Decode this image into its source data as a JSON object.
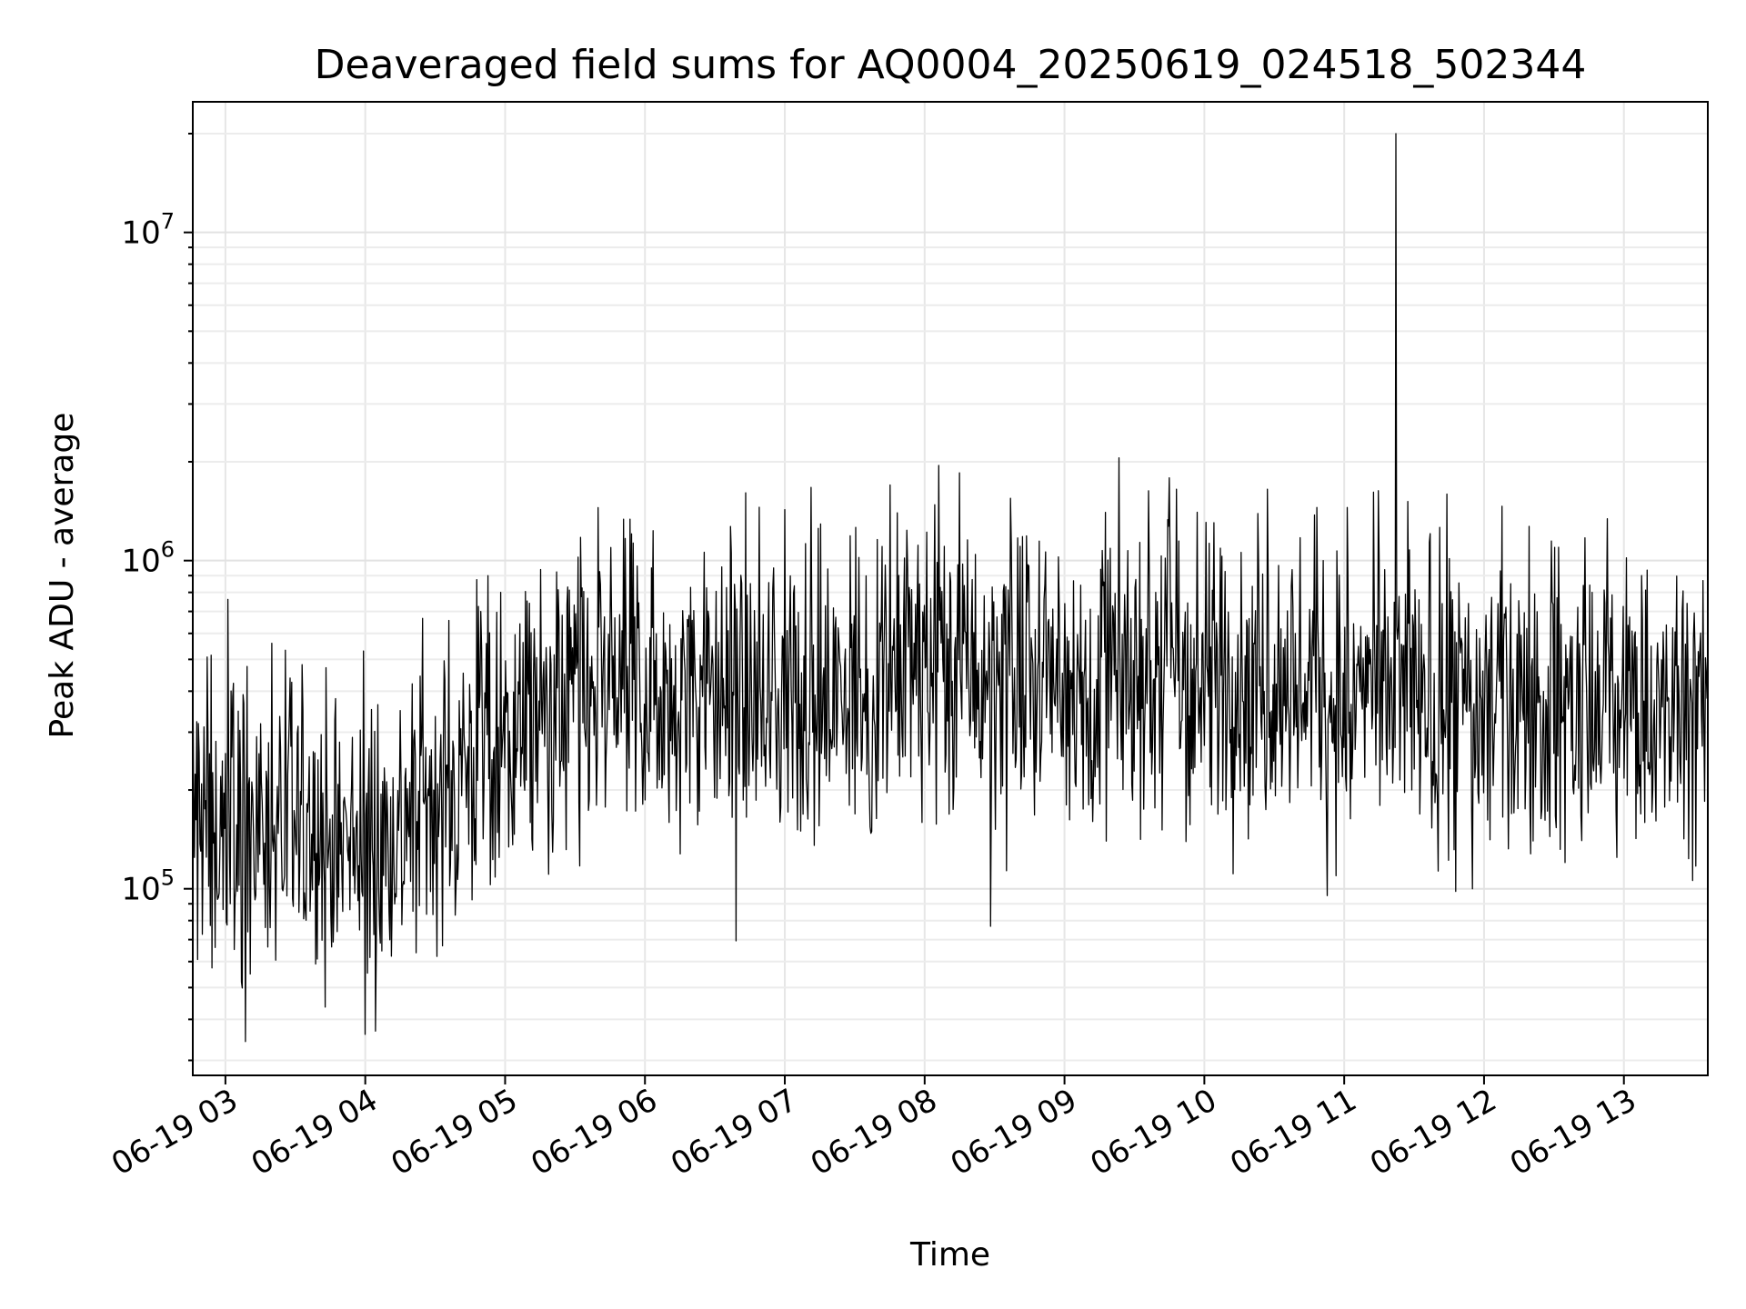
{
  "chart_data": {
    "type": "line",
    "title": "Deaveraged field sums for AQ0004_20250619_024518_502344",
    "xlabel": "Time",
    "ylabel": "Peak ADU - average",
    "x_range": [
      "06-19 02:46",
      "06-19 13:36"
    ],
    "y_scale": "log",
    "ylim": [
      27000,
      25000000
    ],
    "grid": true,
    "line_color": "#000000",
    "x_ticks": [
      {
        "label": "06-19 03",
        "time": "06-19 03:00"
      },
      {
        "label": "06-19 04",
        "time": "06-19 04:00"
      },
      {
        "label": "06-19 05",
        "time": "06-19 05:00"
      },
      {
        "label": "06-19 06",
        "time": "06-19 06:00"
      },
      {
        "label": "06-19 07",
        "time": "06-19 07:00"
      },
      {
        "label": "06-19 08",
        "time": "06-19 08:00"
      },
      {
        "label": "06-19 09",
        "time": "06-19 09:00"
      },
      {
        "label": "06-19 10",
        "time": "06-19 10:00"
      },
      {
        "label": "06-19 11",
        "time": "06-19 11:00"
      },
      {
        "label": "06-19 12",
        "time": "06-19 12:00"
      },
      {
        "label": "06-19 13",
        "time": "06-19 13:00"
      }
    ],
    "y_ticks": [
      {
        "base": "10",
        "exp": "5",
        "value": 100000
      },
      {
        "base": "10",
        "exp": "6",
        "value": 1000000
      },
      {
        "base": "10",
        "exp": "7",
        "value": 10000000
      }
    ],
    "series": [
      {
        "x": [
          "06-19 02:46",
          "06-19 03:00",
          "06-19 03:20",
          "06-19 03:40",
          "06-19 04:00",
          "06-19 04:20",
          "06-19 04:40",
          "06-19 05:00",
          "06-19 05:20",
          "06-19 05:40",
          "06-19 06:00",
          "06-19 06:20",
          "06-19 06:40",
          "06-19 07:00",
          "06-19 07:20",
          "06-19 07:40",
          "06-19 08:00",
          "06-19 08:20",
          "06-19 08:40",
          "06-19 09:00",
          "06-19 09:20",
          "06-19 09:40",
          "06-19 10:00",
          "06-19 10:20",
          "06-19 10:40",
          "06-19 11:00",
          "06-19 11:20",
          "06-19 11:40",
          "06-19 12:00",
          "06-19 12:20",
          "06-19 12:40",
          "06-19 13:00",
          "06-19 13:20",
          "06-19 13:36"
        ],
        "values": [
          150000,
          160000,
          150000,
          140000,
          130000,
          170000,
          230000,
          300000,
          340000,
          390000,
          420000,
          410000,
          400000,
          390000,
          380000,
          410000,
          500000,
          460000,
          430000,
          450000,
          470000,
          460000,
          430000,
          440000,
          440000,
          400000,
          380000,
          370000,
          370000,
          360000,
          350000,
          340000,
          340000,
          350000
        ]
      }
    ],
    "peaks": [
      {
        "x": "06-19 03:20",
        "y": 560000
      },
      {
        "x": "06-19 04:00",
        "y": 36000
      },
      {
        "x": "06-19 05:40",
        "y": 1450000
      },
      {
        "x": "06-19 07:45",
        "y": 1700000
      },
      {
        "x": "06-19 08:06",
        "y": 1950000
      },
      {
        "x": "06-19 08:15",
        "y": 1850000
      },
      {
        "x": "06-19 09:48",
        "y": 1650000
      },
      {
        "x": "06-19 10:27",
        "y": 1650000
      },
      {
        "x": "06-19 11:22",
        "y": 20000000
      },
      {
        "x": "06-19 11:55",
        "y": 100000
      }
    ]
  }
}
